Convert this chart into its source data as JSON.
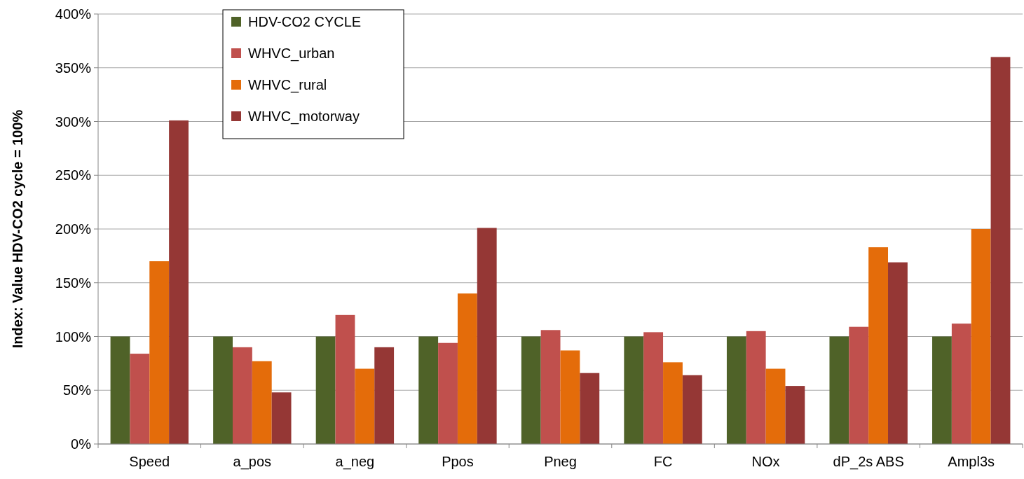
{
  "chart_data": {
    "type": "bar",
    "ylabel": "Index: Value HDV-CO2 cycle = 100%",
    "categories": [
      "Speed",
      "a_pos",
      "a_neg",
      "Ppos",
      "Pneg",
      "FC",
      "NOx",
      "dP_2s ABS",
      "Ampl3s"
    ],
    "series": [
      {
        "name": "HDV-CO2 CYCLE",
        "color": "#4f6228",
        "values": [
          100,
          100,
          100,
          100,
          100,
          100,
          100,
          100,
          100
        ]
      },
      {
        "name": "WHVC_urban",
        "color": "#c0504d",
        "values": [
          84,
          90,
          120,
          94,
          106,
          104,
          105,
          109,
          112
        ]
      },
      {
        "name": "WHVC_rural",
        "color": "#e46c0a",
        "values": [
          170,
          77,
          70,
          140,
          87,
          76,
          70,
          183,
          200
        ]
      },
      {
        "name": "WHVC_motorway",
        "color": "#953735",
        "values": [
          301,
          48,
          90,
          201,
          66,
          64,
          54,
          169,
          360
        ]
      }
    ],
    "ylim": [
      0,
      400
    ],
    "yticks": [
      {
        "value": 0,
        "label": "0%"
      },
      {
        "value": 50,
        "label": "50%"
      },
      {
        "value": 100,
        "label": "100%"
      },
      {
        "value": 150,
        "label": "150%"
      },
      {
        "value": 200,
        "label": "200%"
      },
      {
        "value": 250,
        "label": "250%"
      },
      {
        "value": 300,
        "label": "300%"
      },
      {
        "value": 350,
        "label": "350%"
      },
      {
        "value": 400,
        "label": "400%"
      }
    ],
    "grid": "y",
    "legend": "top left"
  }
}
